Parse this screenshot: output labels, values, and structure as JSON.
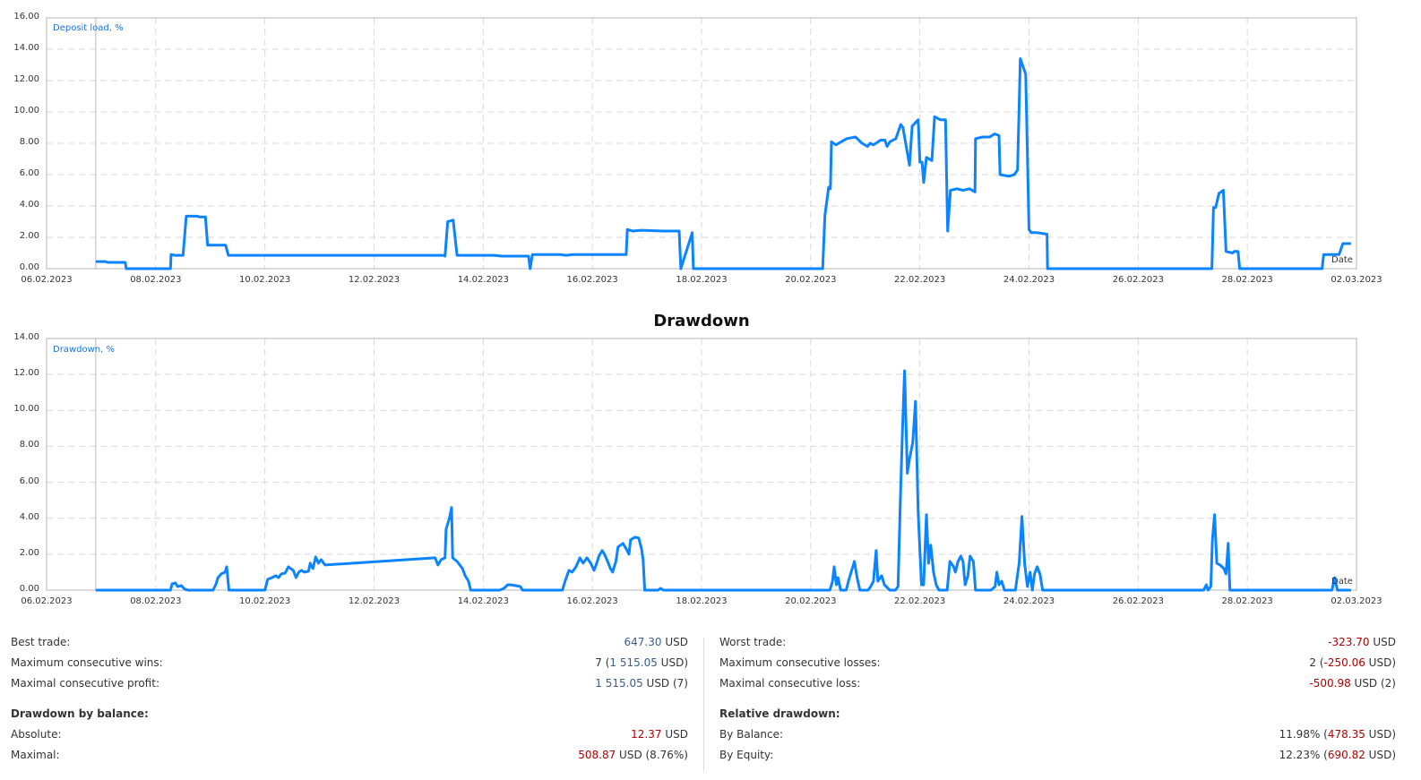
{
  "chart_data": [
    {
      "type": "line",
      "title": "",
      "series_label": "Deposit load, %",
      "xlabel": "Date",
      "ylabel": "Deposit load, %",
      "ylim": [
        0,
        16
      ],
      "yticks": [
        "16.00",
        "14.00",
        "12.00",
        "10.00",
        "8.00",
        "6.00",
        "4.00",
        "2.00",
        "0.00"
      ],
      "xticks": [
        "06.02.2023",
        "08.02.2023",
        "10.02.2023",
        "12.02.2023",
        "14.02.2023",
        "16.02.2023",
        "18.02.2023",
        "20.02.2023",
        "22.02.2023",
        "24.02.2023",
        "26.02.2023",
        "28.02.2023",
        "02.03.2023"
      ],
      "grid": true,
      "color": "#0a84ff",
      "x_unit": "days since 06.02.2023",
      "points": [
        [
          0.9,
          0.45
        ],
        [
          1.08,
          0.45
        ],
        [
          1.12,
          0.4
        ],
        [
          1.44,
          0.4
        ],
        [
          1.46,
          0
        ],
        [
          2.27,
          0
        ],
        [
          2.28,
          0.9
        ],
        [
          2.36,
          0.85
        ],
        [
          2.5,
          0.85
        ],
        [
          2.56,
          3.35
        ],
        [
          2.76,
          3.35
        ],
        [
          2.81,
          3.3
        ],
        [
          2.91,
          3.3
        ],
        [
          2.95,
          1.5
        ],
        [
          3.28,
          1.5
        ],
        [
          3.33,
          0.85
        ],
        [
          7.27,
          0.85
        ],
        [
          7.3,
          0.8
        ],
        [
          7.35,
          3.0
        ],
        [
          7.45,
          3.1
        ],
        [
          7.52,
          0.85
        ],
        [
          8.21,
          0.85
        ],
        [
          8.34,
          0.8
        ],
        [
          8.83,
          0.8
        ],
        [
          8.86,
          0
        ],
        [
          8.9,
          0.9
        ],
        [
          9.41,
          0.9
        ],
        [
          9.52,
          0.85
        ],
        [
          9.65,
          0.9
        ],
        [
          10.62,
          0.9
        ],
        [
          10.64,
          2.5
        ],
        [
          10.74,
          2.4
        ],
        [
          10.9,
          2.45
        ],
        [
          11.29,
          2.4
        ],
        [
          11.59,
          2.4
        ],
        [
          11.62,
          0
        ],
        [
          11.83,
          2.3
        ],
        [
          11.85,
          0
        ],
        [
          14.22,
          0
        ],
        [
          14.26,
          3.4
        ],
        [
          14.33,
          5.2
        ],
        [
          14.36,
          5.1
        ],
        [
          14.38,
          8.1
        ],
        [
          14.46,
          7.9
        ],
        [
          14.66,
          8.3
        ],
        [
          14.82,
          8.4
        ],
        [
          14.94,
          8.0
        ],
        [
          15.04,
          7.8
        ],
        [
          15.09,
          8.0
        ],
        [
          15.15,
          7.9
        ],
        [
          15.28,
          8.2
        ],
        [
          15.36,
          8.2
        ],
        [
          15.4,
          7.8
        ],
        [
          15.45,
          8.1
        ],
        [
          15.56,
          8.3
        ],
        [
          15.65,
          9.2
        ],
        [
          15.69,
          9.0
        ],
        [
          15.81,
          6.6
        ],
        [
          15.86,
          9.1
        ],
        [
          15.97,
          9.5
        ],
        [
          16.0,
          6.8
        ],
        [
          16.04,
          6.8
        ],
        [
          16.07,
          5.5
        ],
        [
          16.12,
          7.1
        ],
        [
          16.22,
          6.9
        ],
        [
          16.27,
          9.7
        ],
        [
          16.38,
          9.5
        ],
        [
          16.47,
          9.5
        ],
        [
          16.51,
          2.4
        ],
        [
          16.56,
          5.0
        ],
        [
          16.68,
          5.1
        ],
        [
          16.79,
          5.0
        ],
        [
          16.91,
          5.1
        ],
        [
          17.01,
          4.9
        ],
        [
          17.02,
          8.3
        ],
        [
          17.15,
          8.4
        ],
        [
          17.28,
          8.4
        ],
        [
          17.37,
          8.6
        ],
        [
          17.45,
          8.5
        ],
        [
          17.47,
          6.0
        ],
        [
          17.63,
          5.9
        ],
        [
          17.73,
          6.0
        ],
        [
          17.79,
          6.3
        ],
        [
          17.84,
          13.4
        ],
        [
          17.94,
          12.4
        ],
        [
          18.0,
          2.5
        ],
        [
          18.04,
          2.3
        ],
        [
          18.15,
          2.3
        ],
        [
          18.33,
          2.2
        ],
        [
          18.34,
          0
        ],
        [
          21.35,
          0
        ],
        [
          21.38,
          3.9
        ],
        [
          21.42,
          3.9
        ],
        [
          21.48,
          4.8
        ],
        [
          21.56,
          5.0
        ],
        [
          21.61,
          1.1
        ],
        [
          21.73,
          1.0
        ],
        [
          21.76,
          1.1
        ],
        [
          21.83,
          1.1
        ],
        [
          21.86,
          0
        ],
        [
          23.37,
          0
        ],
        [
          23.4,
          0.9
        ],
        [
          23.68,
          0.9
        ],
        [
          23.75,
          1.6
        ],
        [
          23.9,
          1.6
        ]
      ]
    },
    {
      "type": "line",
      "title": "Drawdown",
      "series_label": "Drawdown, %",
      "xlabel": "Date",
      "ylabel": "Drawdown, %",
      "ylim": [
        0,
        14
      ],
      "yticks": [
        "14.00",
        "12.00",
        "10.00",
        "8.00",
        "6.00",
        "4.00",
        "2.00",
        "0.00"
      ],
      "xticks": [
        "06.02.2023",
        "08.02.2023",
        "10.02.2023",
        "12.02.2023",
        "14.02.2023",
        "16.02.2023",
        "18.02.2023",
        "20.02.2023",
        "22.02.2023",
        "24.02.2023",
        "26.02.2023",
        "28.02.2023",
        "02.03.2023"
      ],
      "grid": true,
      "color": "#0a84ff",
      "x_unit": "days since 06.02.2023",
      "points": [
        [
          0.9,
          0
        ],
        [
          2.27,
          0
        ],
        [
          2.3,
          0.35
        ],
        [
          2.36,
          0.4
        ],
        [
          2.4,
          0.2
        ],
        [
          2.47,
          0.25
        ],
        [
          2.53,
          0.05
        ],
        [
          2.6,
          0
        ],
        [
          3.05,
          0
        ],
        [
          3.1,
          0.3
        ],
        [
          3.14,
          0.7
        ],
        [
          3.2,
          0.9
        ],
        [
          3.27,
          1.0
        ],
        [
          3.3,
          1.3
        ],
        [
          3.34,
          0
        ],
        [
          4.0,
          0
        ],
        [
          4.05,
          0.6
        ],
        [
          4.13,
          0.7
        ],
        [
          4.2,
          0.8
        ],
        [
          4.25,
          0.7
        ],
        [
          4.3,
          0.9
        ],
        [
          4.37,
          0.95
        ],
        [
          4.43,
          1.3
        ],
        [
          4.52,
          1.1
        ],
        [
          4.57,
          0.7
        ],
        [
          4.62,
          1.0
        ],
        [
          4.67,
          1.1
        ],
        [
          4.72,
          1.0
        ],
        [
          4.8,
          1.05
        ],
        [
          4.83,
          1.5
        ],
        [
          4.88,
          1.2
        ],
        [
          4.93,
          1.85
        ],
        [
          4.98,
          1.5
        ],
        [
          5.03,
          1.7
        ],
        [
          5.1,
          1.4
        ],
        [
          7.12,
          1.8
        ],
        [
          7.17,
          1.4
        ],
        [
          7.23,
          1.7
        ],
        [
          7.3,
          1.8
        ],
        [
          7.32,
          3.4
        ],
        [
          7.38,
          4.0
        ],
        [
          7.42,
          4.6
        ],
        [
          7.44,
          1.8
        ],
        [
          7.52,
          1.6
        ],
        [
          7.57,
          1.4
        ],
        [
          7.62,
          1.2
        ],
        [
          7.67,
          0.8
        ],
        [
          7.73,
          0.5
        ],
        [
          7.77,
          0.0
        ],
        [
          8.3,
          0
        ],
        [
          8.38,
          0.1
        ],
        [
          8.45,
          0.3
        ],
        [
          8.5,
          0.3
        ],
        [
          8.6,
          0.25
        ],
        [
          8.68,
          0.2
        ],
        [
          8.72,
          0
        ],
        [
          9.45,
          0
        ],
        [
          9.5,
          0.5
        ],
        [
          9.57,
          1.1
        ],
        [
          9.63,
          1.0
        ],
        [
          9.7,
          1.3
        ],
        [
          9.77,
          1.8
        ],
        [
          9.83,
          1.5
        ],
        [
          9.9,
          1.8
        ],
        [
          9.97,
          1.5
        ],
        [
          10.03,
          1.1
        ],
        [
          10.08,
          1.5
        ],
        [
          10.12,
          1.9
        ],
        [
          10.18,
          2.2
        ],
        [
          10.22,
          2.0
        ],
        [
          10.28,
          1.6
        ],
        [
          10.33,
          1.2
        ],
        [
          10.37,
          1.0
        ],
        [
          10.43,
          1.6
        ],
        [
          10.47,
          2.4
        ],
        [
          10.56,
          2.6
        ],
        [
          10.62,
          2.3
        ],
        [
          10.67,
          2.0
        ],
        [
          10.7,
          2.8
        ],
        [
          10.78,
          2.95
        ],
        [
          10.85,
          2.9
        ],
        [
          10.9,
          2.3
        ],
        [
          10.93,
          1.7
        ],
        [
          10.96,
          0
        ],
        [
          11.2,
          0
        ],
        [
          11.25,
          0.1
        ],
        [
          11.3,
          0
        ],
        [
          14.35,
          0
        ],
        [
          14.4,
          0.5
        ],
        [
          14.43,
          1.3
        ],
        [
          14.47,
          0.3
        ],
        [
          14.5,
          0.7
        ],
        [
          14.55,
          0
        ],
        [
          14.65,
          0
        ],
        [
          14.7,
          0.6
        ],
        [
          14.8,
          1.6
        ],
        [
          14.85,
          0.7
        ],
        [
          14.9,
          0
        ],
        [
          15.05,
          0
        ],
        [
          15.1,
          0.2
        ],
        [
          15.15,
          0.5
        ],
        [
          15.2,
          2.2
        ],
        [
          15.23,
          0.5
        ],
        [
          15.3,
          0.8
        ],
        [
          15.35,
          0.3
        ],
        [
          15.45,
          0
        ],
        [
          15.55,
          0
        ],
        [
          15.6,
          0.2
        ],
        [
          15.65,
          5.7
        ],
        [
          15.68,
          8.8
        ],
        [
          15.72,
          12.2
        ],
        [
          15.77,
          6.5
        ],
        [
          15.81,
          7.3
        ],
        [
          15.87,
          8.2
        ],
        [
          15.92,
          10.5
        ],
        [
          15.97,
          4.3
        ],
        [
          16.03,
          0.3
        ],
        [
          16.07,
          0.3
        ],
        [
          16.12,
          4.2
        ],
        [
          16.16,
          1.5
        ],
        [
          16.2,
          2.5
        ],
        [
          16.25,
          1.0
        ],
        [
          16.3,
          0.3
        ],
        [
          16.35,
          0
        ],
        [
          16.5,
          0
        ],
        [
          16.55,
          1.6
        ],
        [
          16.62,
          1.3
        ],
        [
          16.65,
          1.0
        ],
        [
          16.7,
          1.6
        ],
        [
          16.75,
          1.9
        ],
        [
          16.79,
          1.6
        ],
        [
          16.83,
          0.3
        ],
        [
          16.88,
          0.8
        ],
        [
          16.92,
          1.9
        ],
        [
          16.98,
          1.6
        ],
        [
          17.02,
          0
        ],
        [
          17.3,
          0
        ],
        [
          17.38,
          0.2
        ],
        [
          17.41,
          1.0
        ],
        [
          17.45,
          0.3
        ],
        [
          17.5,
          0.5
        ],
        [
          17.55,
          0
        ],
        [
          17.75,
          0
        ],
        [
          17.82,
          1.5
        ],
        [
          17.87,
          4.1
        ],
        [
          17.92,
          1.5
        ],
        [
          17.97,
          0.2
        ],
        [
          18.02,
          1.0
        ],
        [
          18.06,
          0
        ],
        [
          18.1,
          0.9
        ],
        [
          18.15,
          1.3
        ],
        [
          18.2,
          0.9
        ],
        [
          18.25,
          0
        ],
        [
          21.2,
          0
        ],
        [
          21.25,
          0.3
        ],
        [
          21.28,
          0
        ],
        [
          21.33,
          0.2
        ],
        [
          21.36,
          2.8
        ],
        [
          21.4,
          4.2
        ],
        [
          21.44,
          1.5
        ],
        [
          21.5,
          1.4
        ],
        [
          21.57,
          1.2
        ],
        [
          21.61,
          0.9
        ],
        [
          21.65,
          2.6
        ],
        [
          21.68,
          0
        ],
        [
          23.55,
          0
        ],
        [
          23.6,
          0.7
        ],
        [
          23.65,
          0
        ],
        [
          23.9,
          0
        ]
      ]
    }
  ],
  "charts": {
    "load": {
      "series_label": "Deposit load, %",
      "date_label": "Date"
    },
    "drawdown": {
      "title": "Drawdown",
      "series_label": "Drawdown, %",
      "date_label": "Date"
    }
  },
  "stats": {
    "left": [
      {
        "label": "Best trade:",
        "value_parts": [
          {
            "text": "647.30",
            "cls": "pos"
          },
          {
            "text": " USD",
            "cls": ""
          }
        ]
      },
      {
        "label": "Maximum consecutive wins:",
        "value_parts": [
          {
            "text": "7 (",
            "cls": ""
          },
          {
            "text": "1 515.05",
            "cls": "pos"
          },
          {
            "text": " USD)",
            "cls": ""
          }
        ]
      },
      {
        "label": "Maximal consecutive profit:",
        "value_parts": [
          {
            "text": "1 515.05",
            "cls": "pos"
          },
          {
            "text": " USD (7)",
            "cls": ""
          }
        ]
      },
      {
        "gap": true
      },
      {
        "label": "Drawdown by balance:",
        "head": true,
        "value_parts": []
      },
      {
        "label": "Absolute:",
        "value_parts": [
          {
            "text": "12.37",
            "cls": "neg"
          },
          {
            "text": " USD",
            "cls": ""
          }
        ]
      },
      {
        "label": "Maximal:",
        "value_parts": [
          {
            "text": "508.87",
            "cls": "neg"
          },
          {
            "text": " USD (8.76%)",
            "cls": ""
          }
        ]
      }
    ],
    "right": [
      {
        "label": "Worst trade:",
        "value_parts": [
          {
            "text": "-323.70",
            "cls": "neg"
          },
          {
            "text": " USD",
            "cls": ""
          }
        ]
      },
      {
        "label": "Maximum consecutive losses:",
        "value_parts": [
          {
            "text": "2 (",
            "cls": ""
          },
          {
            "text": "-250.06",
            "cls": "neg"
          },
          {
            "text": " USD)",
            "cls": ""
          }
        ]
      },
      {
        "label": "Maximal consecutive loss:",
        "value_parts": [
          {
            "text": "-500.98",
            "cls": "neg"
          },
          {
            "text": " USD (2)",
            "cls": ""
          }
        ]
      },
      {
        "gap": true
      },
      {
        "label": "Relative drawdown:",
        "head": true,
        "value_parts": []
      },
      {
        "label": "By Balance:",
        "value_parts": [
          {
            "text": "11.98% (",
            "cls": ""
          },
          {
            "text": "478.35",
            "cls": "neg"
          },
          {
            "text": " USD)",
            "cls": ""
          }
        ]
      },
      {
        "label": "By Equity:",
        "value_parts": [
          {
            "text": "12.23% (",
            "cls": ""
          },
          {
            "text": "690.82",
            "cls": "neg"
          },
          {
            "text": " USD)",
            "cls": ""
          }
        ]
      }
    ]
  }
}
